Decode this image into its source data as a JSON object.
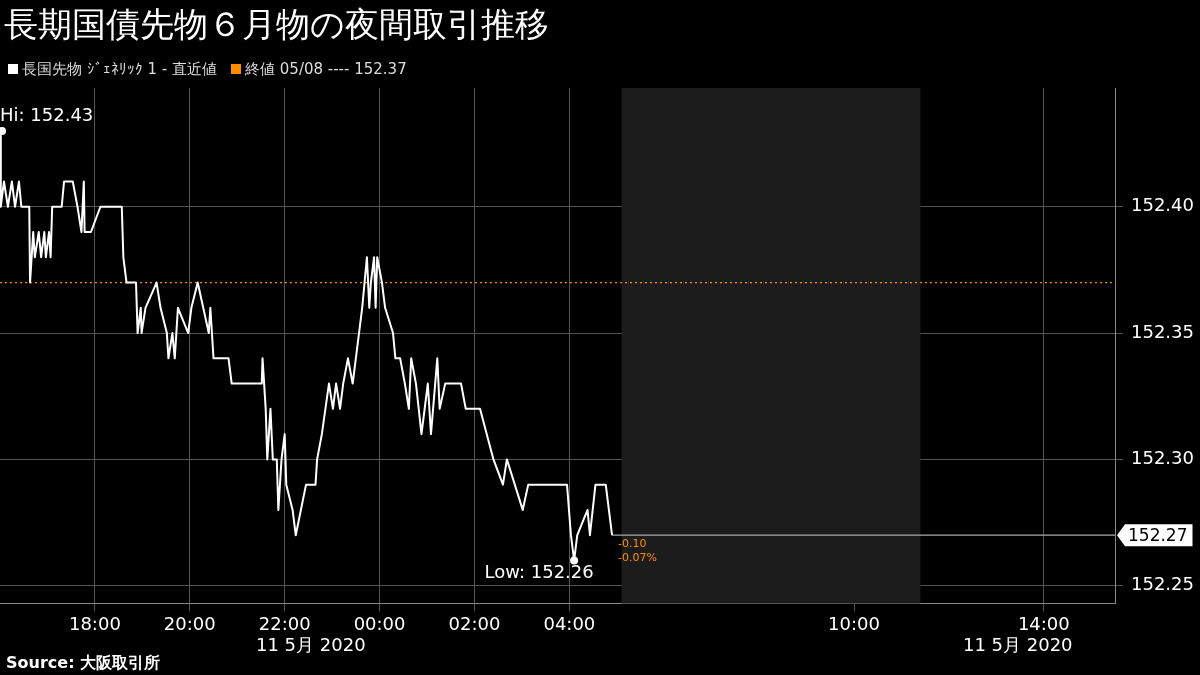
{
  "chart_data": {
    "type": "line",
    "title": "長期国債先物６月物の夜間取引推移",
    "x": [
      "2020-05-10T16:00",
      "2020-05-10T16:01",
      "2020-05-10T16:05",
      "2020-05-10T16:10",
      "2020-05-10T16:15",
      "2020-05-10T16:19",
      "2020-05-10T16:24",
      "2020-05-10T16:27",
      "2020-05-10T16:37",
      "2020-05-10T16:38",
      "2020-05-10T16:42",
      "2020-05-10T16:44",
      "2020-05-10T16:49",
      "2020-05-10T16:52",
      "2020-05-10T16:56",
      "2020-05-10T16:58",
      "2020-05-10T17:02",
      "2020-05-10T17:04",
      "2020-05-10T17:06",
      "2020-05-10T17:18",
      "2020-05-10T17:21",
      "2020-05-10T17:32",
      "2020-05-10T17:38",
      "2020-05-10T17:43",
      "2020-05-10T17:46",
      "2020-05-10T17:47",
      "2020-05-10T17:55",
      "2020-05-10T18:07",
      "2020-05-10T18:34",
      "2020-05-10T18:36",
      "2020-05-10T18:40",
      "2020-05-10T18:52",
      "2020-05-10T18:54",
      "2020-05-10T18:58",
      "2020-05-10T18:59",
      "2020-05-10T19:04",
      "2020-05-10T19:18",
      "2020-05-10T19:23",
      "2020-05-10T19:31",
      "2020-05-10T19:33",
      "2020-05-10T19:38",
      "2020-05-10T19:41",
      "2020-05-10T19:45",
      "2020-05-10T19:58",
      "2020-05-10T20:02",
      "2020-05-10T20:10",
      "2020-05-10T20:17",
      "2020-05-10T20:24",
      "2020-05-10T20:26",
      "2020-05-10T20:30",
      "2020-05-10T20:49",
      "2020-05-10T20:53",
      "2020-05-10T21:31",
      "2020-05-10T21:32",
      "2020-05-10T21:36",
      "2020-05-10T21:38",
      "2020-05-10T21:42",
      "2020-05-10T21:45",
      "2020-05-10T21:50",
      "2020-05-10T21:52",
      "2020-05-10T21:56",
      "2020-05-10T22:00",
      "2020-05-10T22:02",
      "2020-05-10T22:10",
      "2020-05-10T22:14",
      "2020-05-10T22:27",
      "2020-05-10T22:39",
      "2020-05-10T22:41",
      "2020-05-10T22:47",
      "2020-05-10T22:56",
      "2020-05-10T23:01",
      "2020-05-10T23:05",
      "2020-05-10T23:10",
      "2020-05-10T23:14",
      "2020-05-10T23:20",
      "2020-05-10T23:26",
      "2020-05-10T23:30",
      "2020-05-10T23:38",
      "2020-05-10T23:44",
      "2020-05-10T23:47",
      "2020-05-10T23:49",
      "2020-05-10T23:53",
      "2020-05-10T23:55",
      "2020-05-10T23:57",
      "2020-05-11T00:03",
      "2020-05-11T00:07",
      "2020-05-11T00:17",
      "2020-05-11T00:20",
      "2020-05-11T00:26",
      "2020-05-11T00:32",
      "2020-05-11T00:37",
      "2020-05-11T00:40",
      "2020-05-11T00:46",
      "2020-05-11T00:53",
      "2020-05-11T01:01",
      "2020-05-11T01:05",
      "2020-05-11T01:13",
      "2020-05-11T01:16",
      "2020-05-11T01:23",
      "2020-05-11T01:43",
      "2020-05-11T01:49",
      "2020-05-11T02:07",
      "2020-05-11T02:24",
      "2020-05-11T02:36",
      "2020-05-11T02:41",
      "2020-05-11T03:01",
      "2020-05-11T03:08",
      "2020-05-11T03:57",
      "2020-05-11T04:02",
      "2020-05-11T04:06",
      "2020-05-11T04:10",
      "2020-05-11T04:23",
      "2020-05-11T04:26",
      "2020-05-11T04:33",
      "2020-05-11T04:46",
      "2020-05-11T04:54"
    ],
    "series": [
      {
        "name": "長国先物 ｼﾞｪﾈﾘｯｸ 1 - 直近値",
        "color": "#ffffff",
        "values": [
          152.43,
          152.4,
          152.41,
          152.4,
          152.41,
          152.4,
          152.41,
          152.4,
          152.4,
          152.37,
          152.39,
          152.38,
          152.39,
          152.38,
          152.39,
          152.38,
          152.39,
          152.38,
          152.4,
          152.4,
          152.41,
          152.41,
          152.4,
          152.39,
          152.41,
          152.39,
          152.39,
          152.4,
          152.4,
          152.38,
          152.37,
          152.37,
          152.35,
          152.36,
          152.35,
          152.36,
          152.37,
          152.36,
          152.35,
          152.34,
          152.35,
          152.34,
          152.36,
          152.35,
          152.36,
          152.37,
          152.36,
          152.35,
          152.36,
          152.34,
          152.34,
          152.33,
          152.33,
          152.34,
          152.32,
          152.3,
          152.32,
          152.3,
          152.3,
          152.28,
          152.3,
          152.31,
          152.29,
          152.28,
          152.27,
          152.29,
          152.29,
          152.3,
          152.31,
          152.33,
          152.32,
          152.33,
          152.32,
          152.33,
          152.34,
          152.33,
          152.34,
          152.36,
          152.38,
          152.36,
          152.37,
          152.38,
          152.36,
          152.38,
          152.37,
          152.36,
          152.35,
          152.34,
          152.34,
          152.33,
          152.32,
          152.34,
          152.33,
          152.31,
          152.33,
          152.31,
          152.34,
          152.32,
          152.33,
          152.33,
          152.32,
          152.32,
          152.3,
          152.29,
          152.3,
          152.28,
          152.29,
          152.29,
          152.27,
          152.26,
          152.27,
          152.28,
          152.27,
          152.29,
          152.29,
          152.27
        ]
      }
    ],
    "xlim": [
      "2020-05-10T16:00",
      "2020-05-11T15:30"
    ],
    "xticks": [
      {
        "value": "2020-05-10T18:00",
        "label": "18:00"
      },
      {
        "value": "2020-05-10T20:00",
        "label": "20:00"
      },
      {
        "value": "2020-05-10T22:00",
        "label": "22:00"
      },
      {
        "value": "2020-05-11T00:00",
        "label": "00:00"
      },
      {
        "value": "2020-05-11T02:00",
        "label": "02:00"
      },
      {
        "value": "2020-05-11T04:00",
        "label": "04:00"
      },
      {
        "value": "2020-05-11T10:00",
        "label": "10:00"
      },
      {
        "value": "2020-05-11T14:00",
        "label": "14:00"
      }
    ],
    "ylim": [
      152.243,
      152.447
    ],
    "yticks": [
      152.25,
      {
        "value": 152.3,
        "label": "152.30"
      },
      152.35,
      {
        "value": 152.4,
        "label": "152.40"
      }
    ],
    "grid": true,
    "legend": "top left",
    "marker": "none",
    "line_style": "solid",
    "ref_lines": [
      {
        "axis": "y",
        "value": 152.37,
        "label": "終値 05/08 ---- 152.37",
        "color": "#ff8c00",
        "line_style": "dotted"
      },
      {
        "axis": "y",
        "value": 152.27,
        "label": "152.27",
        "color": "#aaaaaa",
        "line_style": "solid"
      }
    ],
    "bands": [
      {
        "axis": "x",
        "from": "2020-05-11T05:06",
        "to": "2020-05-11T11:24",
        "color": "#1c1c1c"
      }
    ],
    "annotations": [
      {
        "text": "Hi: 152.43",
        "x": "2020-05-10T16:00",
        "y": 152.43
      },
      {
        "text": "Low: 152.26",
        "x": "2020-05-11T04:06",
        "y": 152.26
      },
      {
        "text": "-0.10",
        "x": "2020-05-11T04:54",
        "y": 152.27
      },
      {
        "text": "-0.07%",
        "x": "2020-05-11T04:54",
        "y": 152.27
      },
      "11 5月 2020",
      "11 5月 2020",
      "Source: 大阪取引所"
    ]
  }
}
